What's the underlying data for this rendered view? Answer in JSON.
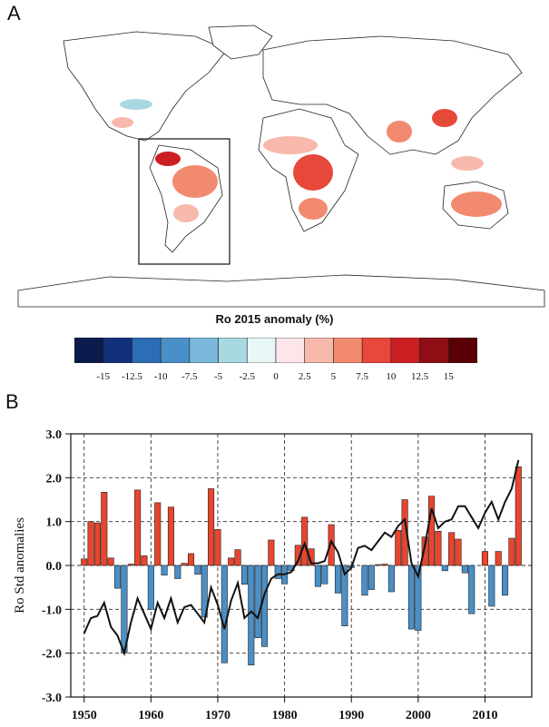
{
  "panel_a": {
    "label": "A",
    "colorbar": {
      "title": "Ro 2015 anomaly (%)",
      "colors": [
        "#0d1a4d",
        "#13307a",
        "#2d6db5",
        "#4a90c8",
        "#79b8da",
        "#a8d8e2",
        "#e8f7f7",
        "#fde6ea",
        "#f8b9ad",
        "#f28a70",
        "#e6483a",
        "#cc1f22",
        "#8e0e16",
        "#5a0005"
      ],
      "tick_labels": [
        "-15",
        "-12.5",
        "-10",
        "-7.5",
        "-5",
        "-2.5",
        "0",
        "2.5",
        "5",
        "7.5",
        "10",
        "12.5",
        "15"
      ]
    }
  },
  "panel_b": {
    "label": "B"
  },
  "chart_data": {
    "type": "bar",
    "ylabel": "Ro Std anomalies",
    "ylim": [
      -3.0,
      3.0
    ],
    "xlim": [
      1948,
      2017
    ],
    "y_ticks": [
      "-3.0",
      "-2.0",
      "-1.0",
      "0.0",
      "1.0",
      "2.0",
      "3.0"
    ],
    "x_ticks": [
      "1950",
      "1960",
      "1970",
      "1980",
      "1990",
      "2000",
      "2010"
    ],
    "grid": true,
    "colors": {
      "positive": "#e8452e",
      "negative": "#4a8fc6",
      "line": "#111111"
    },
    "series": [
      {
        "type": "bar",
        "x": [
          1950,
          1951,
          1952,
          1953,
          1954,
          1955,
          1956,
          1957,
          1958,
          1959,
          1960,
          1961,
          1962,
          1963,
          1964,
          1965,
          1966,
          1967,
          1968,
          1969,
          1970,
          1971,
          1972,
          1973,
          1974,
          1975,
          1976,
          1977,
          1978,
          1979,
          1980,
          1981,
          1982,
          1983,
          1984,
          1985,
          1986,
          1987,
          1988,
          1989,
          1990,
          1991,
          1992,
          1993,
          1994,
          1995,
          1996,
          1997,
          1998,
          1999,
          2000,
          2001,
          2002,
          2003,
          2004,
          2005,
          2006,
          2007,
          2008,
          2009,
          2010,
          2011,
          2012,
          2013,
          2014,
          2015
        ],
        "values": [
          0.15,
          1.0,
          0.97,
          1.67,
          0.17,
          -0.52,
          -2.0,
          0.03,
          1.72,
          0.22,
          -1.0,
          1.43,
          -0.22,
          1.33,
          -0.3,
          0.05,
          0.27,
          -0.2,
          -1.18,
          1.75,
          0.82,
          -2.22,
          0.17,
          0.36,
          -0.43,
          -2.27,
          -1.65,
          -1.85,
          0.58,
          -0.3,
          -0.42,
          -0.12,
          0.46,
          1.1,
          0.38,
          -0.48,
          -0.42,
          0.93,
          -0.63,
          -1.38,
          -0.05,
          0.0,
          -0.68,
          -0.55,
          0.02,
          0.03,
          -0.6,
          0.8,
          1.5,
          -1.45,
          -1.48,
          0.65,
          1.58,
          0.78,
          -0.12,
          0.75,
          0.6,
          -0.17,
          -1.1,
          0.0,
          0.32,
          -0.93,
          0.32,
          -0.68,
          0.62,
          2.25
        ]
      },
      {
        "type": "line",
        "x": [
          1950,
          1951,
          1952,
          1953,
          1954,
          1955,
          1956,
          1957,
          1958,
          1959,
          1960,
          1961,
          1962,
          1963,
          1964,
          1965,
          1966,
          1967,
          1968,
          1969,
          1970,
          1971,
          1972,
          1973,
          1974,
          1975,
          1976,
          1977,
          1978,
          1979,
          1980,
          1981,
          1982,
          1983,
          1984,
          1985,
          1986,
          1987,
          1988,
          1989,
          1990,
          1991,
          1992,
          1993,
          1994,
          1995,
          1996,
          1997,
          1998,
          1999,
          2000,
          2001,
          2002,
          2003,
          2004,
          2005,
          2006,
          2007,
          2008,
          2009,
          2010,
          2011,
          2012,
          2013,
          2014,
          2015
        ],
        "values": [
          -1.55,
          -1.2,
          -1.15,
          -0.85,
          -1.4,
          -1.6,
          -2.0,
          -1.3,
          -0.75,
          -1.1,
          -1.45,
          -0.85,
          -1.2,
          -0.75,
          -1.3,
          -0.95,
          -0.9,
          -1.1,
          -1.3,
          -0.5,
          -0.9,
          -1.45,
          -0.8,
          -0.4,
          -1.2,
          -1.05,
          -1.2,
          -0.65,
          -0.3,
          -0.2,
          -0.2,
          -0.15,
          0.1,
          0.5,
          0.05,
          0.05,
          0.1,
          0.55,
          0.3,
          -0.2,
          -0.05,
          0.4,
          0.45,
          0.35,
          0.55,
          0.75,
          0.65,
          0.9,
          1.05,
          0.05,
          -0.25,
          0.45,
          1.3,
          0.85,
          1.0,
          1.05,
          1.35,
          1.35,
          1.1,
          0.85,
          1.2,
          1.45,
          1.05,
          1.45,
          1.75,
          2.4
        ]
      }
    ]
  }
}
